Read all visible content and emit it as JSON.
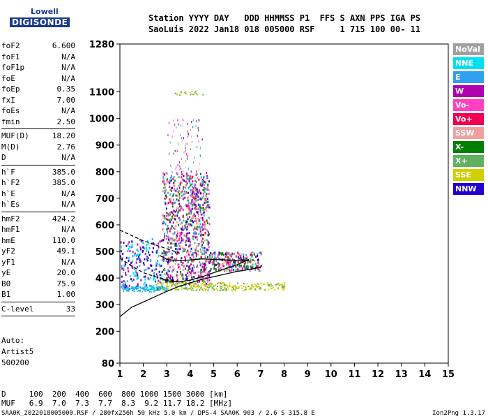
{
  "logo": {
    "line1": "Lowell",
    "line2": "DIGISONDE"
  },
  "header": {
    "line1": "Station YYYY DAY   DDD HHMMSS P1  FFS S AXN PPS IGA PS",
    "line2": "SaoLuis 2022 Jan18 018 005000 RSF     1 715 100 00- 11"
  },
  "params": {
    "group1": [
      {
        "name": "foF2",
        "value": "6.600"
      },
      {
        "name": "foF1",
        "value": "N/A"
      },
      {
        "name": "foF1p",
        "value": "N/A"
      },
      {
        "name": "foE",
        "value": "N/A"
      },
      {
        "name": "foEp",
        "value": "0.35"
      },
      {
        "name": "fxI",
        "value": "7.00"
      },
      {
        "name": "foEs",
        "value": "N/A"
      },
      {
        "name": "fmin",
        "value": "2.50"
      }
    ],
    "group2": [
      {
        "name": "MUF(D)",
        "value": "18.20"
      },
      {
        "name": "M(D)",
        "value": "2.76"
      },
      {
        "name": "D",
        "value": "N/A"
      }
    ],
    "group3": [
      {
        "name": "h`F",
        "value": "385.0"
      },
      {
        "name": "h`F2",
        "value": "385.0"
      },
      {
        "name": "h`E",
        "value": "N/A"
      },
      {
        "name": "h`Es",
        "value": "N/A"
      }
    ],
    "group4": [
      {
        "name": "hmF2",
        "value": "424.2"
      },
      {
        "name": "hmF1",
        "value": "N/A"
      },
      {
        "name": "hmE",
        "value": "110.0"
      },
      {
        "name": "yF2",
        "value": "49.1"
      },
      {
        "name": "yF1",
        "value": "N/A"
      },
      {
        "name": "yE",
        "value": "20.0"
      },
      {
        "name": "B0",
        "value": "75.9"
      },
      {
        "name": "B1",
        "value": "1.00"
      }
    ],
    "group5": [
      {
        "name": "C-level",
        "value": "33"
      }
    ]
  },
  "auto": {
    "line1": "Auto:",
    "line2": "Artist5",
    "line3": "500200"
  },
  "legend": [
    {
      "label": "NoVal",
      "color": "#a0a0a0"
    },
    {
      "label": "NNE",
      "color": "#00e0f0"
    },
    {
      "label": "E",
      "color": "#30a0f0"
    },
    {
      "label": "W",
      "color": "#b000b0"
    },
    {
      "label": "Vo-",
      "color": "#ff40c0"
    },
    {
      "label": "Vo+",
      "color": "#f00050"
    },
    {
      "label": "SSW",
      "color": "#f0a0a0"
    },
    {
      "label": "X-",
      "color": "#008000"
    },
    {
      "label": "X+",
      "color": "#60b060"
    },
    {
      "label": "SSE",
      "color": "#d0d000"
    },
    {
      "label": "NNW",
      "color": "#2000d0"
    }
  ],
  "footer": {
    "line1": "D     100  200  400  600  800 1000 1500 3000 [km]",
    "line2": "MUF   6.9  7.0  7.3  7.7  8.3  9.2 11.7 18.2 [MHz]",
    "bottom": "SAA0K_2022018005000.RSF / 280fx256h 50 kHz 5.0 km / DPS-4 SAA0K 903 / 2.6 S 315.8 E",
    "version": "Ion2Png 1.3.17"
  },
  "chart_data": {
    "type": "scatter",
    "x_ticks": [
      1,
      2,
      3,
      4,
      5,
      6,
      7,
      8,
      9,
      10,
      11,
      12,
      13,
      14,
      15
    ],
    "y_ticks": [
      80,
      200,
      300,
      400,
      500,
      600,
      700,
      800,
      900,
      1000,
      1100,
      1280
    ],
    "xlim": [
      1,
      15
    ],
    "ylim": [
      80,
      1280
    ],
    "series": [
      {
        "name": "trace-a",
        "color": "#000000",
        "x": [
          1.0,
          1.5,
          2.0,
          2.5,
          3.0,
          3.5,
          4.0,
          4.5,
          5.0,
          5.5,
          6.0,
          6.5,
          7.0
        ],
        "y": [
          255,
          290,
          310,
          330,
          350,
          368,
          382,
          395,
          405,
          415,
          425,
          432,
          440
        ]
      },
      {
        "name": "trace-b",
        "color": "#000000",
        "x": [
          2.7,
          3.0,
          3.5,
          4.0,
          4.5,
          5.0,
          5.5,
          6.0,
          6.5
        ],
        "y": [
          400,
          390,
          385,
          392,
          405,
          420,
          435,
          450,
          470
        ]
      },
      {
        "name": "trace-c",
        "color": "#000000",
        "x": [
          2.7,
          3.0,
          3.5,
          4.0,
          4.5,
          5.0,
          5.5,
          6.0,
          6.5
        ],
        "y": [
          485,
          470,
          465,
          468,
          472,
          470,
          468,
          466,
          465
        ]
      },
      {
        "name": "trace-d",
        "color": "#000000",
        "dash": true,
        "x": [
          1.0,
          1.5,
          2.0,
          2.5,
          3.0,
          3.5
        ],
        "y": [
          580,
          560,
          540,
          525,
          510,
          495
        ]
      },
      {
        "name": "trace-e",
        "color": "#000000",
        "dash": true,
        "x": [
          1.0,
          1.5,
          2.0,
          2.5,
          3.0,
          3.5
        ],
        "y": [
          475,
          445,
          420,
          405,
          395,
          388
        ]
      }
    ]
  }
}
